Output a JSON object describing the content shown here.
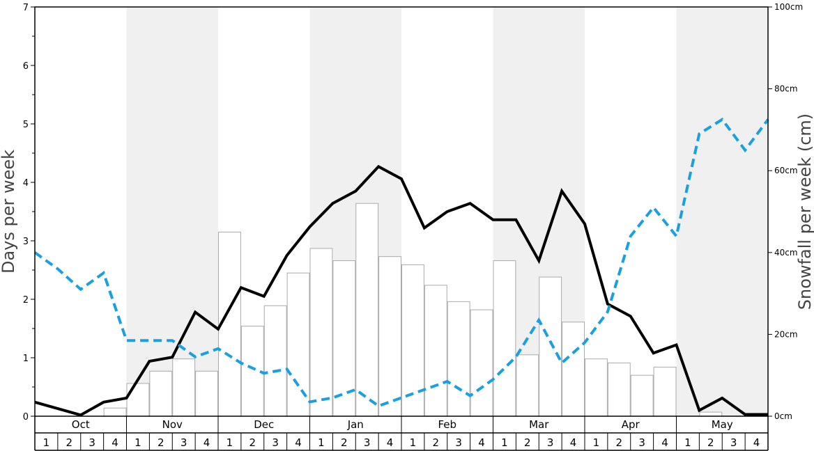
{
  "chart_data": {
    "type": "bar",
    "ylabel_left": "Days per week",
    "ylabel_right": "Snowfall per week (cm)",
    "ylim_left": [
      0,
      7
    ],
    "ylim_right": [
      0,
      100
    ],
    "yticks_left": [
      "0",
      "1",
      "2",
      "3",
      "4",
      "5",
      "6",
      "7"
    ],
    "yticks_right": [
      "0cm",
      "20cm",
      "40cm",
      "60cm",
      "80cm",
      "100cm"
    ],
    "months": [
      "Oct",
      "Nov",
      "Dec",
      "Jan",
      "Feb",
      "Mar",
      "Apr",
      "May"
    ],
    "weeks": [
      "1",
      "2",
      "3",
      "4"
    ],
    "month_bands_shaded": [
      false,
      true,
      false,
      true,
      false,
      true,
      false,
      true
    ],
    "grid": false,
    "series": [
      {
        "kind": "bar",
        "axis": "right",
        "color": "#ffffff",
        "stroke": "#aaaaaa",
        "values": [
          0,
          0,
          0,
          2,
          8,
          11,
          14,
          11,
          45,
          22,
          27,
          35,
          41,
          38,
          52,
          39,
          37,
          32,
          28,
          26,
          38,
          15,
          34,
          23,
          14,
          13,
          10,
          12,
          0,
          1,
          0,
          0
        ]
      },
      {
        "kind": "line",
        "axis": "left",
        "color": "#000000",
        "style": "solid",
        "values": [
          0.24,
          0.13,
          0.02,
          0.24,
          0.31,
          0.94,
          1.01,
          1.78,
          1.49,
          2.2,
          2.05,
          2.75,
          3.24,
          3.64,
          3.85,
          4.27,
          4.06,
          3.22,
          3.5,
          3.64,
          3.36,
          3.36,
          2.66,
          3.85,
          3.29,
          1.92,
          1.71,
          1.08,
          1.22,
          0.1,
          0.31,
          0.03,
          0.03
        ]
      },
      {
        "kind": "line",
        "axis": "right",
        "color": "#1a9fe0",
        "style": "dashed",
        "values": [
          40,
          36,
          31,
          35,
          18.5,
          18.5,
          18.5,
          14.5,
          16.5,
          13,
          10.5,
          11.5,
          3.5,
          4.5,
          6.5,
          2.5,
          4.5,
          6.5,
          8.5,
          5,
          9,
          14.5,
          23.5,
          13,
          18,
          25.5,
          44,
          51,
          44,
          69,
          72.5,
          65,
          72.5
        ]
      }
    ]
  }
}
